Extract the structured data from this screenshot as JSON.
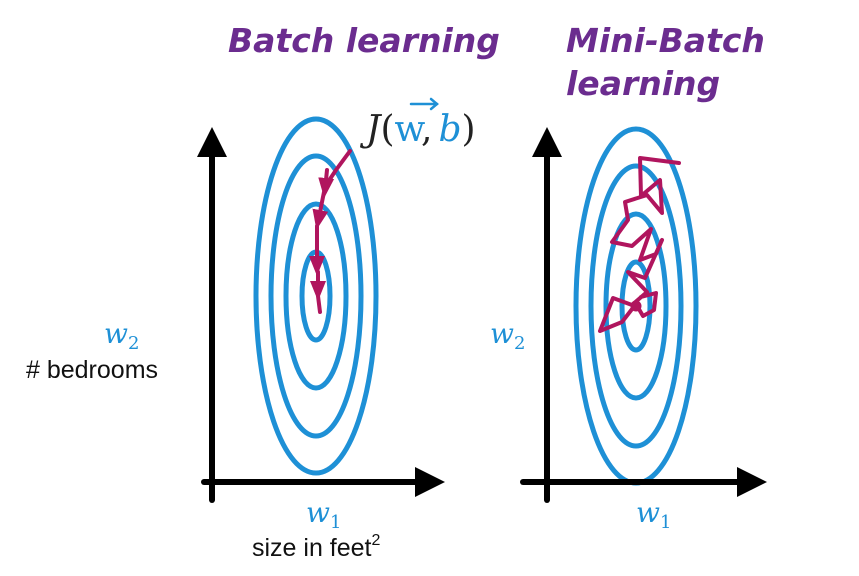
{
  "colors": {
    "contour": "#1e90d6",
    "path": "#b0155e",
    "axis": "#000000",
    "title": "#6b2c8f"
  },
  "left_panel": {
    "title": "Batch learning",
    "cost_label": {
      "j": "J",
      "open": "(",
      "w": "w",
      "comma": ",",
      "b": "b",
      "close": ")"
    },
    "y_axis": {
      "symbol": "w",
      "subscript": "2",
      "caption": "# bedrooms"
    },
    "x_axis": {
      "symbol": "w",
      "subscript": "1",
      "caption": "size in feet",
      "caption_superscript": "2"
    }
  },
  "right_panel": {
    "title_line1": "Mini-Batch",
    "title_line2": "learning",
    "y_axis": {
      "symbol": "w",
      "subscript": "2"
    },
    "x_axis": {
      "symbol": "w",
      "subscript": "1"
    }
  }
}
